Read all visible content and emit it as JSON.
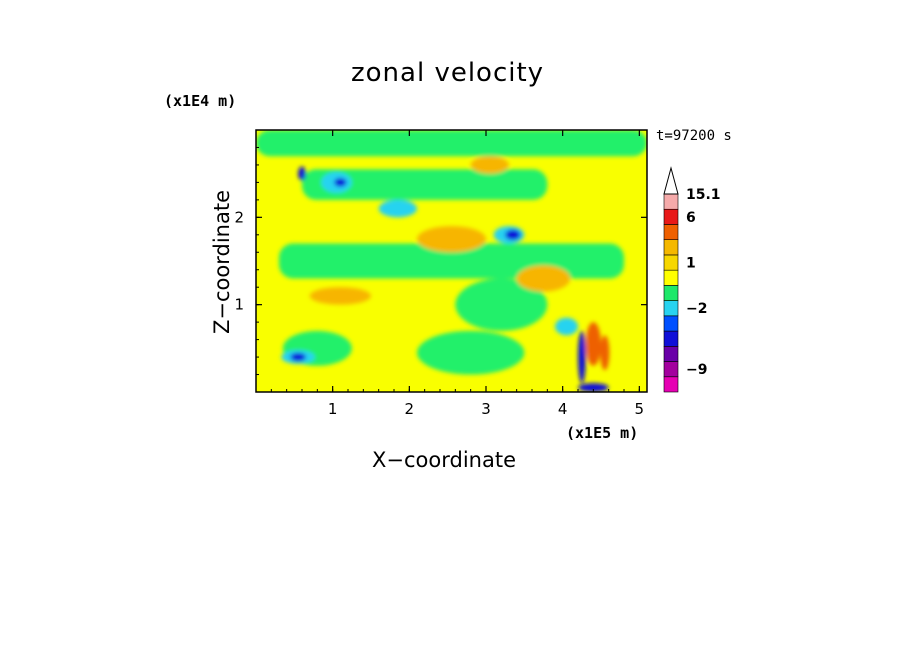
{
  "chart_data": {
    "type": "heatmap",
    "title": "zonal velocity",
    "xlabel": "X−coordinate",
    "ylabel": "Z−coordinate",
    "x_scale_label": "(x1E5 m)",
    "y_scale_label": "(x1E4 m)",
    "time_label": "t=97200 s",
    "x_ticks": [
      1,
      2,
      3,
      4,
      5
    ],
    "y_ticks": [
      1,
      2
    ],
    "xlim": [
      0,
      5.1
    ],
    "ylim": [
      0,
      3.0
    ],
    "colorbar": {
      "labels": [
        "15.1",
        "6",
        "1",
        "−2",
        "−9"
      ],
      "label_values": [
        15.1,
        6,
        1,
        -2,
        -9
      ],
      "levels": [
        {
          "value": -13,
          "color": "#e600b3"
        },
        {
          "value": -10,
          "color": "#a3009e"
        },
        {
          "value": -8,
          "color": "#6a00a8"
        },
        {
          "value": -6,
          "color": "#1010d8"
        },
        {
          "value": -4,
          "color": "#0050ff"
        },
        {
          "value": -2,
          "color": "#28d3f0"
        },
        {
          "value": -1,
          "color": "#1ee86a"
        },
        {
          "value": 0,
          "color": "#ffff00"
        },
        {
          "value": 1,
          "color": "#f7d700"
        },
        {
          "value": 2,
          "color": "#f5b800"
        },
        {
          "value": 4,
          "color": "#ef6000"
        },
        {
          "value": 6,
          "color": "#e81818"
        },
        {
          "value": 10,
          "color": "#f5aaaa"
        }
      ]
    },
    "colors": {
      "blue": "#1010d8",
      "cyan": "#28d3f0",
      "green": "#22f06a",
      "yellow": "#f9ff00",
      "orange": "#f7b500",
      "red": "#ee6000"
    },
    "field": {
      "background": "yellow",
      "regions": [
        {
          "kind": "band",
          "x": [
            0,
            5.1
          ],
          "y": [
            2.7,
            3.0
          ],
          "color": "green"
        },
        {
          "kind": "band",
          "x": [
            0.6,
            3.8
          ],
          "y": [
            2.2,
            2.55
          ],
          "color": "green"
        },
        {
          "kind": "band",
          "x": [
            0.3,
            4.8
          ],
          "y": [
            1.3,
            1.7
          ],
          "color": "green"
        },
        {
          "kind": "blob",
          "cx": 0.8,
          "cy": 0.5,
          "rx": 0.45,
          "ry": 0.2,
          "color": "green"
        },
        {
          "kind": "blob",
          "cx": 2.8,
          "cy": 0.45,
          "rx": 0.7,
          "ry": 0.25,
          "color": "green"
        },
        {
          "kind": "blob",
          "cx": 3.2,
          "cy": 1.0,
          "rx": 0.6,
          "ry": 0.3,
          "color": "green"
        },
        {
          "kind": "blob",
          "cx": 1.05,
          "cy": 2.4,
          "rx": 0.2,
          "ry": 0.12,
          "color": "cyan"
        },
        {
          "kind": "blob",
          "cx": 1.85,
          "cy": 2.1,
          "rx": 0.25,
          "ry": 0.1,
          "color": "cyan"
        },
        {
          "kind": "blob",
          "cx": 3.3,
          "cy": 1.8,
          "rx": 0.2,
          "ry": 0.1,
          "color": "cyan"
        },
        {
          "kind": "blob",
          "cx": 4.05,
          "cy": 0.75,
          "rx": 0.15,
          "ry": 0.1,
          "color": "cyan"
        },
        {
          "kind": "blob",
          "cx": 0.55,
          "cy": 0.4,
          "rx": 0.22,
          "ry": 0.08,
          "color": "cyan"
        },
        {
          "kind": "blob",
          "cx": 0.6,
          "cy": 2.5,
          "rx": 0.05,
          "ry": 0.08,
          "color": "blue"
        },
        {
          "kind": "blob",
          "cx": 1.1,
          "cy": 2.4,
          "rx": 0.08,
          "ry": 0.05,
          "color": "blue"
        },
        {
          "kind": "blob",
          "cx": 3.35,
          "cy": 1.8,
          "rx": 0.1,
          "ry": 0.06,
          "color": "blue"
        },
        {
          "kind": "blob",
          "cx": 0.55,
          "cy": 0.4,
          "rx": 0.1,
          "ry": 0.05,
          "color": "blue"
        },
        {
          "kind": "blob",
          "cx": 4.25,
          "cy": 0.4,
          "rx": 0.05,
          "ry": 0.3,
          "color": "blue"
        },
        {
          "kind": "blob",
          "cx": 4.4,
          "cy": 0.05,
          "rx": 0.2,
          "ry": 0.05,
          "color": "blue"
        },
        {
          "kind": "blob",
          "cx": 2.55,
          "cy": 1.75,
          "rx": 0.45,
          "ry": 0.15,
          "color": "orange"
        },
        {
          "kind": "blob",
          "cx": 1.1,
          "cy": 1.1,
          "rx": 0.4,
          "ry": 0.1,
          "color": "orange"
        },
        {
          "kind": "blob",
          "cx": 3.75,
          "cy": 1.3,
          "rx": 0.35,
          "ry": 0.15,
          "color": "orange"
        },
        {
          "kind": "blob",
          "cx": 3.05,
          "cy": 2.6,
          "rx": 0.25,
          "ry": 0.1,
          "color": "orange"
        },
        {
          "kind": "blob",
          "cx": 4.4,
          "cy": 0.55,
          "rx": 0.1,
          "ry": 0.25,
          "color": "red"
        },
        {
          "kind": "blob",
          "cx": 4.55,
          "cy": 0.45,
          "rx": 0.06,
          "ry": 0.2,
          "color": "red"
        }
      ]
    }
  }
}
